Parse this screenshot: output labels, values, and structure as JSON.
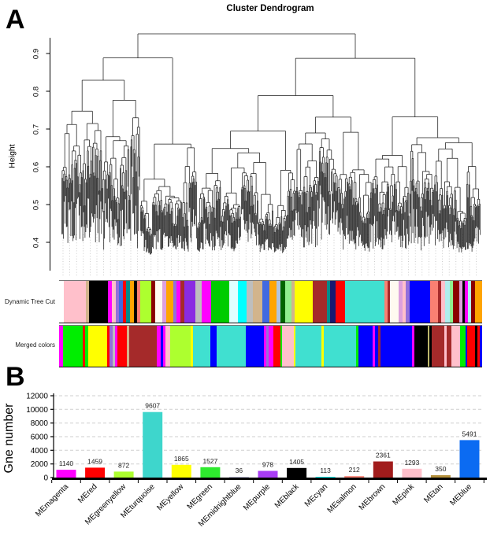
{
  "panel_a": {
    "label": "A",
    "rows": [
      {
        "label": "Dynamic Tree Cut",
        "segments": [
          {
            "w": 1.2,
            "c": "#FFFFFF"
          },
          {
            "w": 5.2,
            "c": "#FFC0CB"
          },
          {
            "w": 0.8,
            "c": "#D2B48C"
          },
          {
            "w": 4.6,
            "c": "#000000"
          },
          {
            "w": 0.8,
            "c": "#FF00FF"
          },
          {
            "w": 1.0,
            "c": "#FFC0CB"
          },
          {
            "w": 0.8,
            "c": "#9370DB"
          },
          {
            "w": 0.9,
            "c": "#4169E1"
          },
          {
            "w": 0.8,
            "c": "#FF0000"
          },
          {
            "w": 1.0,
            "c": "#008B8B"
          },
          {
            "w": 0.9,
            "c": "#FFA500"
          },
          {
            "w": 0.7,
            "c": "#000000"
          },
          {
            "w": 0.8,
            "c": "#FA8072"
          },
          {
            "w": 2.6,
            "c": "#ADFF2F"
          },
          {
            "w": 1.0,
            "c": "#8B0000"
          },
          {
            "w": 1.8,
            "c": "#FFFAF0"
          },
          {
            "w": 0.8,
            "c": "#DDA0DD"
          },
          {
            "w": 1.8,
            "c": "#FFA500"
          },
          {
            "w": 0.8,
            "c": "#9370DB"
          },
          {
            "w": 0.8,
            "c": "#FF00FF"
          },
          {
            "w": 1.0,
            "c": "#A52A2A"
          },
          {
            "w": 2.6,
            "c": "#8A2BE2"
          },
          {
            "w": 1.5,
            "c": "#BEBEBE"
          },
          {
            "w": 2.4,
            "c": "#FF00FF"
          },
          {
            "w": 4.4,
            "c": "#00CC00"
          },
          {
            "w": 2.0,
            "c": "#E0FFFF"
          },
          {
            "w": 2.0,
            "c": "#00FFFF"
          },
          {
            "w": 1.5,
            "c": "#BEBEBE"
          },
          {
            "w": 2.4,
            "c": "#D2B48C"
          },
          {
            "w": 1.6,
            "c": "#4169E1"
          },
          {
            "w": 1.7,
            "c": "#FFA500"
          },
          {
            "w": 1.0,
            "c": "#B0C4DE"
          },
          {
            "w": 1.1,
            "c": "#006400"
          },
          {
            "w": 1.6,
            "c": "#90EE90"
          },
          {
            "w": 0.7,
            "c": "#D2B48C"
          },
          {
            "w": 4.4,
            "c": "#FFFF00"
          },
          {
            "w": 3.4,
            "c": "#A52A2A"
          },
          {
            "w": 0.8,
            "c": "#008B8B"
          },
          {
            "w": 1.3,
            "c": "#191970"
          },
          {
            "w": 2.2,
            "c": "#FF0000"
          },
          {
            "w": 9.5,
            "c": "#40E0D0"
          },
          {
            "w": 0.7,
            "c": "#FA8072"
          },
          {
            "w": 0.6,
            "c": "#A52A2A"
          },
          {
            "w": 2.2,
            "c": "#FFFAF0"
          },
          {
            "w": 0.8,
            "c": "#DDA0DD"
          },
          {
            "w": 0.9,
            "c": "#FFC0CB"
          },
          {
            "w": 0.8,
            "c": "#9370DB"
          },
          {
            "w": 5.0,
            "c": "#0000FF"
          },
          {
            "w": 1.9,
            "c": "#FA8072"
          },
          {
            "w": 0.8,
            "c": "#A52A2A"
          },
          {
            "w": 0.9,
            "c": "#FFC0CB"
          },
          {
            "w": 1.1,
            "c": "#AFEEEE"
          },
          {
            "w": 0.8,
            "c": "#90EE90"
          },
          {
            "w": 1.4,
            "c": "#8B0000"
          },
          {
            "w": 0.9,
            "c": "#DDA0DD"
          },
          {
            "w": 0.6,
            "c": "#000000"
          },
          {
            "w": 0.6,
            "c": "#FF00FF"
          },
          {
            "w": 0.8,
            "c": "#AFEEEE"
          },
          {
            "w": 0.9,
            "c": "#8B0000"
          },
          {
            "w": 1.7,
            "c": "#FFA500"
          }
        ]
      },
      {
        "label": "Merged colors",
        "segments": [
          {
            "w": 0.9,
            "c": "#FF00FF"
          },
          {
            "w": 4.6,
            "c": "#00EE00"
          },
          {
            "w": 0.5,
            "c": "#FF0000"
          },
          {
            "w": 0.7,
            "c": "#00EE00"
          },
          {
            "w": 4.4,
            "c": "#FFFF00"
          },
          {
            "w": 0.6,
            "c": "#FF0000"
          },
          {
            "w": 0.7,
            "c": "#9370DB"
          },
          {
            "w": 0.6,
            "c": "#BEBEBE"
          },
          {
            "w": 0.5,
            "c": "#FF00FF"
          },
          {
            "w": 2.2,
            "c": "#FF0000"
          },
          {
            "w": 0.6,
            "c": "#D2B48C"
          },
          {
            "w": 6.4,
            "c": "#A52A2A"
          },
          {
            "w": 0.9,
            "c": "#FF00FF"
          },
          {
            "w": 0.5,
            "c": "#0000FF"
          },
          {
            "w": 0.6,
            "c": "#FF00FF"
          },
          {
            "w": 1.0,
            "c": "#FFC0CB"
          },
          {
            "w": 4.8,
            "c": "#ADFF2F"
          },
          {
            "w": 0.5,
            "c": "#FFFF00"
          },
          {
            "w": 4.0,
            "c": "#40E0D0"
          },
          {
            "w": 1.5,
            "c": "#0000FF"
          },
          {
            "w": 6.8,
            "c": "#40E0D0"
          },
          {
            "w": 4.2,
            "c": "#0000FF"
          },
          {
            "w": 0.5,
            "c": "#FF00FF"
          },
          {
            "w": 0.6,
            "c": "#9370DB"
          },
          {
            "w": 1.0,
            "c": "#FF00FF"
          },
          {
            "w": 1.6,
            "c": "#FF0000"
          },
          {
            "w": 0.5,
            "c": "#00EE00"
          },
          {
            "w": 2.6,
            "c": "#FFC0CB"
          },
          {
            "w": 0.5,
            "c": "#FFFF00"
          },
          {
            "w": 6.0,
            "c": "#40E0D0"
          },
          {
            "w": 0.5,
            "c": "#FFFF00"
          },
          {
            "w": 7.5,
            "c": "#40E0D0"
          },
          {
            "w": 0.6,
            "c": "#00EE00"
          },
          {
            "w": 3.2,
            "c": "#0000FF"
          },
          {
            "w": 0.5,
            "c": "#FF00FF"
          },
          {
            "w": 0.7,
            "c": "#0000FF"
          },
          {
            "w": 0.6,
            "c": "#A52A2A"
          },
          {
            "w": 7.3,
            "c": "#0000FF"
          },
          {
            "w": 0.6,
            "c": "#FF00FF"
          },
          {
            "w": 3.1,
            "c": "#000000"
          },
          {
            "w": 0.4,
            "c": "#BDB76B"
          },
          {
            "w": 0.5,
            "c": "#000000"
          },
          {
            "w": 3.0,
            "c": "#A52A2A"
          },
          {
            "w": 0.5,
            "c": "#FFC0CB"
          },
          {
            "w": 1.0,
            "c": "#A52A2A"
          },
          {
            "w": 2.0,
            "c": "#FFC0CB"
          },
          {
            "w": 1.3,
            "c": "#00EE00"
          },
          {
            "w": 0.4,
            "c": "#0000FF"
          },
          {
            "w": 1.8,
            "c": "#FF0000"
          },
          {
            "w": 0.5,
            "c": "#000000"
          },
          {
            "w": 0.6,
            "c": "#FF0000"
          },
          {
            "w": 0.5,
            "c": "#0000FF"
          }
        ]
      }
    ]
  },
  "panel_b": {
    "label": "B"
  },
  "chart_data": [
    {
      "type": "dendrogram",
      "title": "Cluster Dendrogram",
      "ylabel": "Height",
      "yticks": [
        0.4,
        0.5,
        0.6,
        0.7,
        0.8,
        0.9
      ],
      "ylim": [
        0.35,
        0.97
      ],
      "row_annotations": [
        "Dynamic Tree Cut",
        "Merged colors"
      ]
    },
    {
      "type": "bar",
      "ylabel": "Gne number",
      "xlabel": "",
      "yticks": [
        0,
        2000,
        4000,
        6000,
        8000,
        10000,
        12000
      ],
      "ylim": [
        0,
        12000
      ],
      "grid": "dashed-horizontal",
      "legend": "none",
      "categories": [
        "MEmagenta",
        "MEred",
        "MEgreenyellow",
        "MEturquoise",
        "MEyellow",
        "MEgreen",
        "MEmidnightblue",
        "MEpurple",
        "MEblack",
        "MEcyan",
        "MEsalmon",
        "MEbrown",
        "MEpink",
        "MEtan",
        "MEblue"
      ],
      "values": [
        1140,
        1459,
        872,
        9607,
        1865,
        1527,
        36,
        978,
        1405,
        113,
        212,
        2361,
        1293,
        350,
        5491
      ],
      "bar_colors": [
        "#FF00FF",
        "#FF0000",
        "#ADFF2F",
        "#3ED6CC",
        "#FFFF00",
        "#2EEA2E",
        "#191970",
        "#A93DF5",
        "#000000",
        "#00FFFF",
        "#FA8072",
        "#A11C1C",
        "#FFC0CB",
        "#B5913B",
        "#0B6BF2"
      ]
    }
  ]
}
